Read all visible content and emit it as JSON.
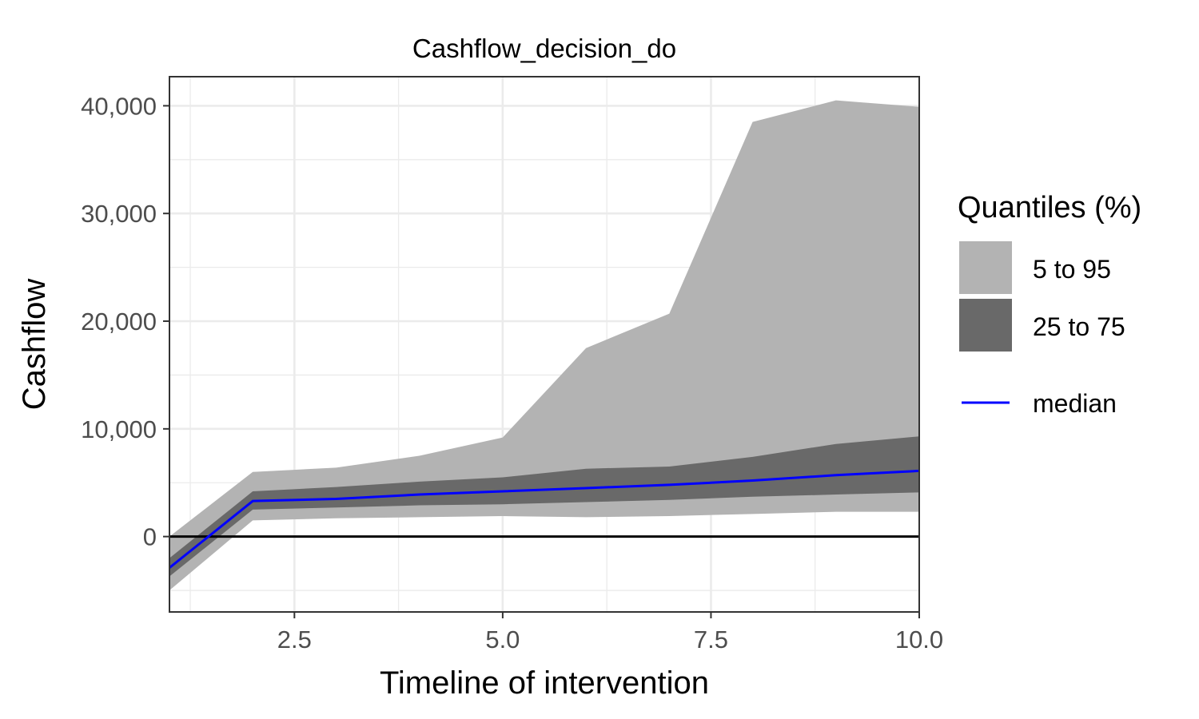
{
  "chart_data": {
    "type": "area",
    "title": "Cashflow_decision_do",
    "xlabel": "Timeline of intervention",
    "ylabel": "Cashflow",
    "xlim": [
      1,
      10
    ],
    "ylim": [
      -7000,
      42700
    ],
    "x_ticks": [
      2.5,
      5.0,
      7.5,
      10.0
    ],
    "x_tick_labels": [
      "2.5",
      "5.0",
      "7.5",
      "10.0"
    ],
    "y_ticks": [
      0,
      10000,
      20000,
      30000,
      40000
    ],
    "y_tick_labels": [
      "0",
      "10,000",
      "20,000",
      "30,000",
      "40,000"
    ],
    "x": [
      1,
      2,
      3,
      4,
      5,
      6,
      7,
      8,
      9,
      10
    ],
    "series": [
      {
        "name": "5 to 95",
        "kind": "band",
        "lower": [
          -5000,
          1500,
          1700,
          1800,
          1900,
          1800,
          1900,
          2100,
          2300,
          2300
        ],
        "upper": [
          0,
          6000,
          6400,
          7500,
          9200,
          17500,
          20700,
          38500,
          40500,
          39900
        ]
      },
      {
        "name": "25 to 75",
        "kind": "band",
        "lower": [
          -3700,
          2500,
          2700,
          2900,
          3000,
          3200,
          3400,
          3700,
          3900,
          4100
        ],
        "upper": [
          -2000,
          4200,
          4600,
          5100,
          5500,
          6300,
          6500,
          7400,
          8600,
          9300
        ]
      },
      {
        "name": "median",
        "kind": "line",
        "values": [
          -2900,
          3300,
          3500,
          3900,
          4200,
          4500,
          4800,
          5200,
          5700,
          6100
        ]
      }
    ],
    "hline": 0,
    "grid": true,
    "legend": {
      "title": "Quantiles (%)",
      "placement": "right",
      "items": [
        {
          "label": "5 to 95",
          "kind": "fill",
          "color": "#b3b3b3"
        },
        {
          "label": "25 to 75",
          "kind": "fill",
          "color": "#696969"
        },
        {
          "label": "median",
          "kind": "line",
          "color": "#0000ff"
        }
      ]
    },
    "colors": {
      "outer_band": "#b3b3b3",
      "inner_band": "#696969",
      "median": "#0000ff",
      "zero_line": "#000000",
      "grid": "#ebebeb",
      "frame": "#333333",
      "tick_text": "#4d4d4d"
    }
  }
}
